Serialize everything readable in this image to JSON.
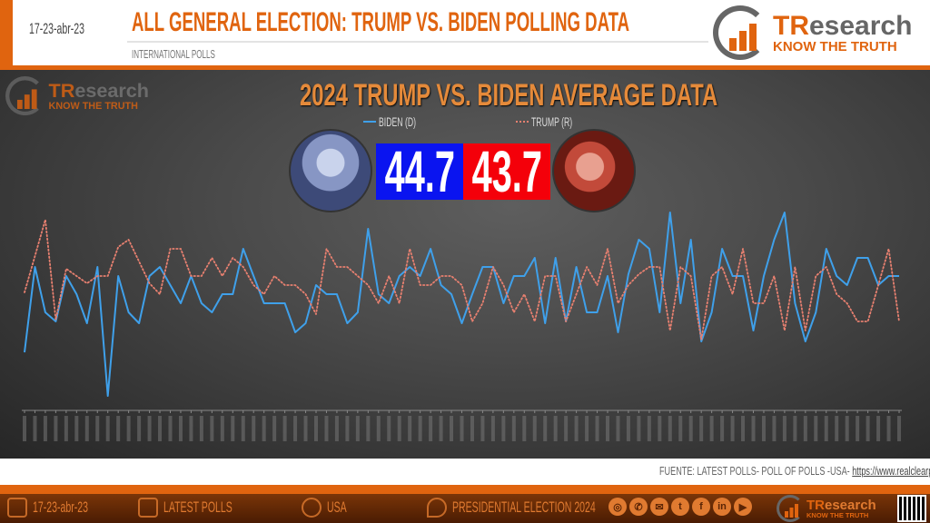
{
  "header": {
    "date": "17-23-abr-23",
    "title": "ALL GENERAL ELECTION: TRUMP VS. BIDEN POLLING DATA",
    "subtitle": "INTERNATIONAL POLLS"
  },
  "logo": {
    "name_accent": "TR",
    "name_rest": "esearch",
    "tagline": "KNOW THE TRUTH"
  },
  "summary": {
    "biden_avg": "44.7",
    "trump_avg": "43.7"
  },
  "colors": {
    "brand": "#e0640f",
    "biden": "#3fa0ea",
    "trump": "#e88070",
    "biden_box": "#0a14f0",
    "trump_box": "#f4000a"
  },
  "chart_data": {
    "type": "line",
    "title": "2024 TRUMP VS. BIDEN AVERAGE DATA",
    "xlabel": "",
    "ylabel": "",
    "ylim": [
      38,
      48.5
    ],
    "grid": false,
    "legend_position": "top-center",
    "series": [
      {
        "name": "BIDEN (D)",
        "style": "solid",
        "values": [
          40.6,
          45.3,
          42.8,
          42.3,
          44.8,
          43.8,
          42.2,
          45.3,
          38.2,
          44.8,
          42.8,
          42.2,
          44.8,
          45.3,
          44.3,
          43.3,
          44.8,
          43.3,
          42.8,
          43.8,
          43.8,
          46.3,
          44.8,
          43.3,
          43.3,
          43.3,
          41.7,
          42.2,
          44.3,
          43.8,
          43.8,
          42.2,
          42.8,
          47.4,
          43.8,
          43.3,
          44.8,
          45.3,
          44.8,
          46.3,
          44.3,
          43.8,
          42.2,
          43.8,
          45.3,
          45.3,
          43.3,
          44.8,
          44.8,
          45.8,
          42.2,
          45.8,
          42.3,
          45.3,
          42.8,
          42.8,
          44.8,
          41.7,
          44.9,
          46.8,
          46.3,
          42.8,
          48.3,
          43.3,
          46.8,
          41.2,
          42.8,
          46.3,
          44.8,
          44.8,
          41.8,
          44.8,
          46.8,
          48.3,
          43.3,
          41.2,
          42.8,
          46.3,
          44.8,
          44.3,
          45.8,
          45.8,
          44.3,
          44.8,
          44.8
        ]
      },
      {
        "name": "TRUMP (R)",
        "style": "dotted",
        "values": [
          43.9,
          45.9,
          47.9,
          42.4,
          45.2,
          44.8,
          44.4,
          44.8,
          44.8,
          46.4,
          46.8,
          45.6,
          44.4,
          43.8,
          46.3,
          46.3,
          44.8,
          44.8,
          45.8,
          44.8,
          45.8,
          45.3,
          44.3,
          43.8,
          44.8,
          44.3,
          44.3,
          43.8,
          42.7,
          46.3,
          45.3,
          45.3,
          44.8,
          44.3,
          43.3,
          44.8,
          43.3,
          46.3,
          44.3,
          44.3,
          44.8,
          44.8,
          44.3,
          42.3,
          43.3,
          45.3,
          44.3,
          42.8,
          43.8,
          42.3,
          44.8,
          44.8,
          42.3,
          43.8,
          45.3,
          44.3,
          46.3,
          43.3,
          44.3,
          44.9,
          45.3,
          45.3,
          41.8,
          45.3,
          44.8,
          41.3,
          44.8,
          45.3,
          43.8,
          46.3,
          43.3,
          43.3,
          44.8,
          41.8,
          45.3,
          41.8,
          44.8,
          45.3,
          43.8,
          43.3,
          42.3,
          42.3,
          44.3,
          46.3,
          42.3
        ]
      }
    ]
  },
  "source": {
    "label": "FUENTE:  LATEST POLLS-  POLL OF POLLS  -USA-",
    "url": "https://www.realclearpolitics.com/"
  },
  "footer": {
    "date": "17-23-abr-23",
    "latest": "LATEST POLLS",
    "country": "USA",
    "topic": "PRESIDENTIAL  ELECTION  2024",
    "social": [
      {
        "icon": "globe-icon",
        "glyph": "◎"
      },
      {
        "icon": "whatsapp-icon",
        "glyph": "✆"
      },
      {
        "icon": "email-icon",
        "glyph": "✉"
      },
      {
        "icon": "twitter-icon",
        "glyph": "t"
      },
      {
        "icon": "facebook-icon",
        "glyph": "f"
      },
      {
        "icon": "linkedin-icon",
        "glyph": "in"
      },
      {
        "icon": "youtube-icon",
        "glyph": "▶"
      }
    ]
  }
}
